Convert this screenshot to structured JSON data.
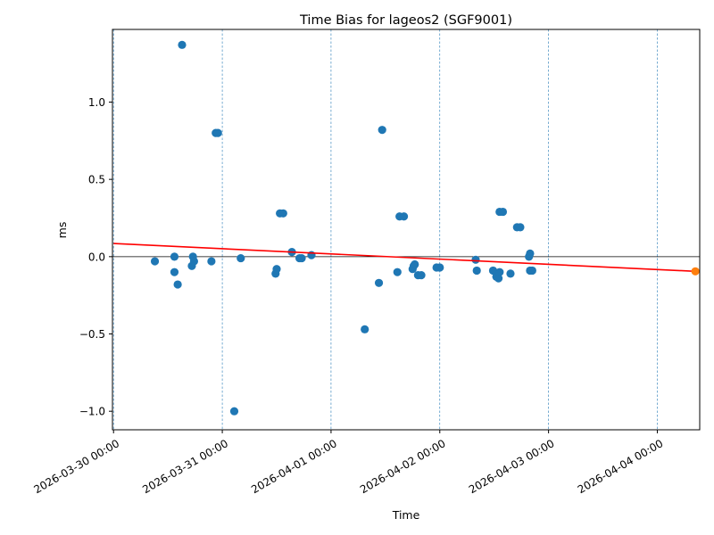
{
  "chart_data": {
    "type": "scatter",
    "title": "Time Bias for lageos2 (SGF9001)",
    "xlabel": "Time",
    "ylabel": "ms",
    "x_tick_labels": [
      "2026-03-30 00:00",
      "2026-03-31 00:00",
      "2026-04-01 00:00",
      "2026-04-02 00:00",
      "2026-04-03 00:00",
      "2026-04-04 00:00"
    ],
    "x_ticks_days": [
      0,
      1,
      2,
      3,
      4,
      5
    ],
    "xlim_days": [
      -0.01,
      5.39
    ],
    "y_ticks": [
      -1.0,
      -0.5,
      0.0,
      0.5,
      1.0
    ],
    "y_tick_labels": [
      "−1.0",
      "−0.5",
      "0.0",
      "0.5",
      "1.0"
    ],
    "ylim": [
      -1.12,
      1.47
    ],
    "grid": "vertical dashed at major x ticks",
    "zero_line": 0.0,
    "colors": {
      "points": "#1f77b4",
      "trend": "#ff0000",
      "forecast": "#ff7f0e",
      "grid": "#1f77b4",
      "zero": "#000000"
    },
    "series": [
      {
        "kind": "observations",
        "points": [
          [
            0.38,
            -0.03
          ],
          [
            0.56,
            0.0
          ],
          [
            0.56,
            -0.1
          ],
          [
            0.59,
            -0.18
          ],
          [
            0.63,
            1.37
          ],
          [
            0.72,
            -0.06
          ],
          [
            0.73,
            0.0
          ],
          [
            0.74,
            -0.03
          ],
          [
            0.9,
            -0.03
          ],
          [
            0.94,
            0.8
          ],
          [
            0.96,
            0.8
          ],
          [
            1.11,
            -1.0
          ],
          [
            1.17,
            -0.01
          ],
          [
            1.49,
            -0.11
          ],
          [
            1.5,
            -0.08
          ],
          [
            1.53,
            0.28
          ],
          [
            1.56,
            0.28
          ],
          [
            1.64,
            0.03
          ],
          [
            1.71,
            -0.01
          ],
          [
            1.73,
            -0.01
          ],
          [
            1.82,
            0.01
          ],
          [
            2.31,
            -0.47
          ],
          [
            2.44,
            -0.17
          ],
          [
            2.47,
            0.82
          ],
          [
            2.61,
            -0.1
          ],
          [
            2.63,
            0.26
          ],
          [
            2.67,
            0.26
          ],
          [
            2.75,
            -0.08
          ],
          [
            2.76,
            -0.06
          ],
          [
            2.77,
            -0.05
          ],
          [
            2.8,
            -0.12
          ],
          [
            2.83,
            -0.12
          ],
          [
            2.97,
            -0.07
          ],
          [
            3.0,
            -0.07
          ],
          [
            3.33,
            -0.02
          ],
          [
            3.34,
            -0.09
          ],
          [
            3.49,
            -0.09
          ],
          [
            3.52,
            -0.13
          ],
          [
            3.54,
            -0.14
          ],
          [
            3.55,
            -0.1
          ],
          [
            3.55,
            0.29
          ],
          [
            3.58,
            0.29
          ],
          [
            3.65,
            -0.11
          ],
          [
            3.71,
            0.19
          ],
          [
            3.74,
            0.19
          ],
          [
            3.82,
            0.0
          ],
          [
            3.83,
            0.02
          ],
          [
            3.83,
            -0.09
          ],
          [
            3.85,
            -0.09
          ]
        ]
      },
      {
        "kind": "trend",
        "points": [
          [
            0.0,
            0.085
          ],
          [
            5.35,
            -0.095
          ]
        ]
      },
      {
        "kind": "forecast",
        "points": [
          [
            5.35,
            -0.095
          ]
        ]
      }
    ]
  }
}
